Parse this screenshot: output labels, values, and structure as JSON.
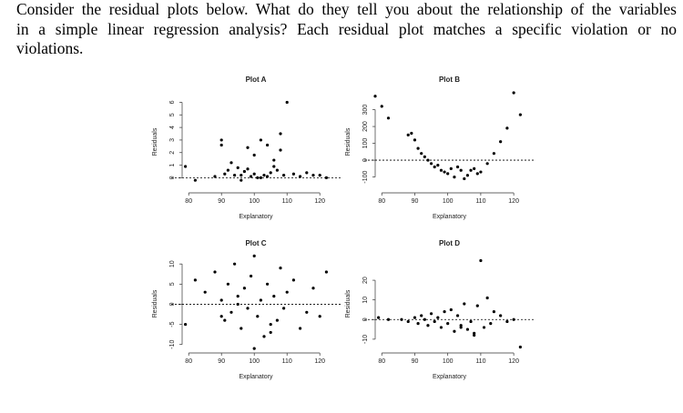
{
  "question": [
    "Consider the residual plots below. What do they tell you about the relationship of the variables",
    "in a simple linear regression analysis? Each residual plot matches a specific violation or no",
    "violations."
  ],
  "chart_data": [
    {
      "type": "scatter",
      "title": "Plot A",
      "x_label": "Explanatory",
      "y_label": "Residuals",
      "xlim": [
        78,
        123
      ],
      "ylim": [
        -1.2,
        6.9
      ],
      "xticks": [
        80,
        90,
        100,
        110,
        120
      ],
      "yticks": [
        0,
        1,
        2,
        3,
        4,
        5,
        6
      ],
      "hline": 0,
      "color": "#000000",
      "x": [
        79,
        82,
        88,
        90,
        91,
        92,
        93,
        94,
        95,
        96,
        97,
        98,
        99,
        100,
        101,
        102,
        103,
        104,
        105,
        106,
        107,
        108,
        109,
        110,
        112,
        114,
        116,
        118,
        120,
        122,
        90,
        96,
        100,
        104,
        108,
        98,
        102,
        106
      ],
      "values": [
        0.9,
        -0.2,
        0.1,
        3.0,
        0.3,
        0.6,
        1.2,
        0.2,
        0.8,
        -0.2,
        0.5,
        2.4,
        0.1,
        0.3,
        0.0,
        3.0,
        0.2,
        2.6,
        0.4,
        1.4,
        0.6,
        3.5,
        0.2,
        6.0,
        0.3,
        0.1,
        0.4,
        0.2,
        0.2,
        0.0,
        2.6,
        0.2,
        1.8,
        0.1,
        2.2,
        0.7,
        0.0,
        0.9
      ]
    },
    {
      "type": "scatter",
      "title": "Plot B",
      "x_label": "Explanatory",
      "y_label": "Residuals",
      "xlim": [
        78,
        123
      ],
      "ylim": [
        -194,
        411
      ],
      "xticks": [
        80,
        90,
        100,
        110,
        120
      ],
      "yticks": [
        -100,
        0,
        100,
        200,
        300
      ],
      "hline": 0,
      "color": "#000000",
      "x": [
        78,
        80,
        82,
        88,
        89,
        90,
        91,
        92,
        94,
        96,
        98,
        100,
        101,
        102,
        104,
        106,
        108,
        110,
        112,
        114,
        116,
        118,
        120,
        122,
        93,
        97,
        99,
        103,
        105,
        107,
        95,
        109
      ],
      "values": [
        380,
        320,
        250,
        150,
        160,
        120,
        70,
        40,
        0,
        -40,
        -60,
        -80,
        -50,
        -100,
        -60,
        -90,
        -50,
        -70,
        -20,
        40,
        110,
        190,
        400,
        270,
        20,
        -30,
        -70,
        -40,
        -110,
        -60,
        -20,
        -80
      ]
    },
    {
      "type": "scatter",
      "title": "Plot C",
      "x_label": "Explanatory",
      "y_label": "Residuals",
      "xlim": [
        78,
        123
      ],
      "ylim": [
        -12.1,
        12.3
      ],
      "xticks": [
        80,
        90,
        100,
        110,
        120
      ],
      "yticks": [
        -10,
        -5,
        0,
        5,
        10
      ],
      "hline": 0,
      "color": "#000000",
      "x": [
        79,
        82,
        85,
        88,
        90,
        91,
        92,
        93,
        94,
        95,
        96,
        97,
        98,
        99,
        100,
        101,
        102,
        103,
        104,
        105,
        106,
        107,
        108,
        109,
        110,
        112,
        114,
        116,
        118,
        120,
        122,
        100,
        95,
        105,
        90
      ],
      "values": [
        -5,
        6,
        3,
        8,
        -3,
        -4,
        5,
        -2,
        10,
        2,
        -6,
        4,
        -1,
        7,
        12,
        -3,
        1,
        -8,
        5,
        -5,
        2,
        -4,
        9,
        -1,
        3,
        6,
        -6,
        -2,
        4,
        -3,
        8,
        -11,
        0,
        -7,
        1
      ]
    },
    {
      "type": "scatter",
      "title": "Plot D",
      "x_label": "Explanatory",
      "y_label": "Residuals",
      "xlim": [
        78,
        123
      ],
      "ylim": [
        -17,
        33
      ],
      "xticks": [
        80,
        90,
        100,
        110,
        120
      ],
      "yticks": [
        -10,
        0,
        10,
        20
      ],
      "hline": 0,
      "color": "#000000",
      "x": [
        79,
        82,
        86,
        88,
        90,
        91,
        92,
        93,
        94,
        95,
        96,
        97,
        98,
        99,
        100,
        101,
        102,
        103,
        104,
        105,
        106,
        107,
        108,
        109,
        110,
        111,
        112,
        113,
        114,
        116,
        118,
        120,
        122,
        108,
        104
      ],
      "values": [
        1,
        0,
        0,
        -1,
        1,
        -2,
        2,
        0,
        -3,
        3,
        -1,
        1,
        -4,
        4,
        -2,
        5,
        -6,
        2,
        -3,
        8,
        -5,
        -1,
        -8,
        7,
        30,
        -4,
        11,
        -2,
        4,
        2,
        -1,
        0,
        -14,
        -7,
        -4
      ]
    }
  ]
}
